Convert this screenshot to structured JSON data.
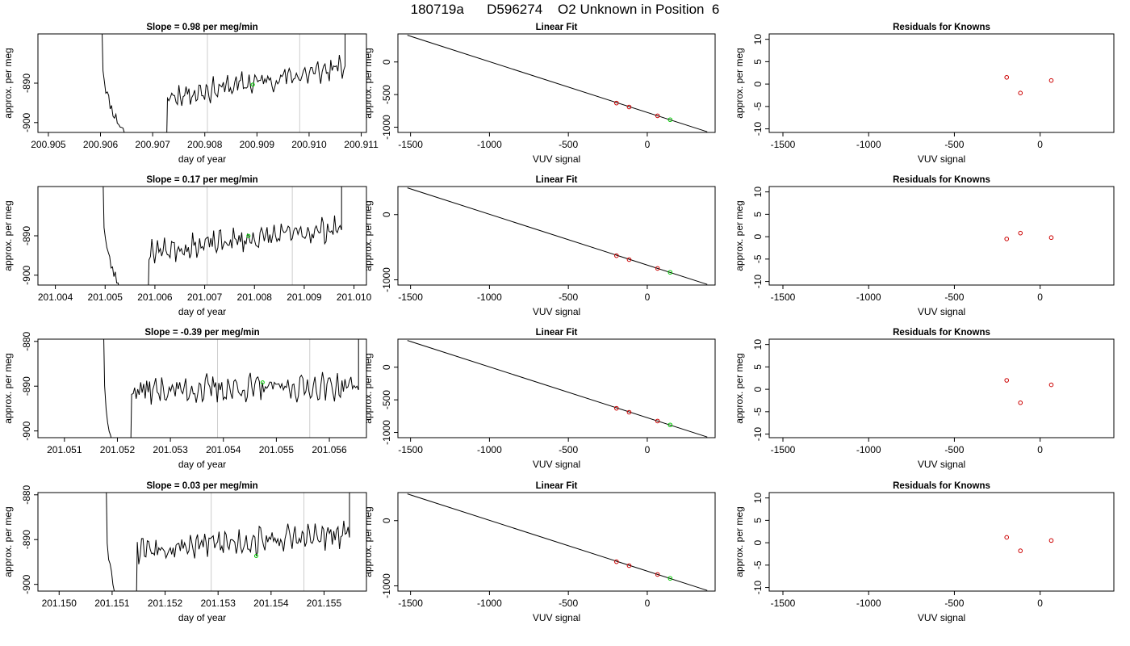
{
  "figure": {
    "title": "180719a      D596274    O2 Unknown in Position  6"
  },
  "chart_data": [
    {
      "type": "line",
      "title": "Slope =  0.98  per meg/min",
      "xlabel": "day of year",
      "ylabel": "approx. per meg",
      "xlim": [
        200.9048,
        200.9111
      ],
      "ylim": [
        -902.5,
        -877.5
      ],
      "xticks": [
        200.905,
        200.906,
        200.907,
        200.908,
        200.909,
        200.91,
        200.911
      ],
      "xtick_labels": [
        "200.905",
        "200.906",
        "200.907",
        "200.908",
        "200.909",
        "200.910",
        "200.911"
      ],
      "yticks": [
        -900,
        -890
      ],
      "ytick_labels": [
        "-900",
        "-890"
      ],
      "vlines": [
        200.90805,
        200.90982
      ],
      "vline_color": "#cccccc",
      "highlight_x": 200.90892,
      "highlight_color": "#00cc00",
      "seed": 11,
      "series_desc": {
        "drop_x": 200.90602,
        "rise_start": 200.90727,
        "start_y": -893.5,
        "end_y": -886,
        "spike_x": 200.91069
      }
    },
    {
      "type": "scatter",
      "title": "Linear Fit",
      "xlabel": "VUV signal",
      "ylabel": "approx. per meg",
      "xlim": [
        -1580,
        430
      ],
      "ylim": [
        -1080,
        430
      ],
      "xticks": [
        -1500,
        -1000,
        -500,
        0
      ],
      "xtick_labels": [
        "-1500",
        "-1000",
        "-500",
        "0"
      ],
      "yticks": [
        -1000,
        -500,
        0
      ],
      "ytick_labels": [
        "-1000",
        "-500",
        "0"
      ],
      "line": {
        "x": [
          -1520,
          380
        ],
        "y": [
          410,
          -1070
        ]
      },
      "points": [
        {
          "x": -195,
          "y": -630
        },
        {
          "x": -115,
          "y": -690
        },
        {
          "x": 65,
          "y": -825
        }
      ],
      "points_color": "#cc0000",
      "unknown": {
        "x": 145,
        "y": -885
      },
      "unknown_color": "#00cc00"
    },
    {
      "type": "scatter",
      "title": "Residuals for Knowns",
      "xlabel": "VUV signal",
      "ylabel": "approx. per meg",
      "xlim": [
        -1580,
        430
      ],
      "ylim": [
        -10.8,
        11.2
      ],
      "xticks": [
        -1500,
        -1000,
        -500,
        0
      ],
      "xtick_labels": [
        "-1500",
        "-1000",
        "-500",
        "0"
      ],
      "yticks": [
        -10,
        -5,
        0,
        5,
        10
      ],
      "ytick_labels": [
        "-10",
        "-5",
        "0",
        "5",
        "10"
      ],
      "points": [
        {
          "x": -195,
          "y": 1.5
        },
        {
          "x": -115,
          "y": -2.0
        },
        {
          "x": 65,
          "y": 0.8
        }
      ],
      "points_color": "#cc0000"
    },
    {
      "type": "line",
      "title": "Slope =  0.17  per meg/min",
      "xlabel": "day of year",
      "ylabel": "approx. per meg",
      "xlim": [
        201.00365,
        201.01025
      ],
      "ylim": [
        -902.5,
        -877.5
      ],
      "xticks": [
        201.004,
        201.005,
        201.006,
        201.007,
        201.008,
        201.009,
        201.01
      ],
      "xtick_labels": [
        "201.004",
        "201.005",
        "201.006",
        "201.007",
        "201.008",
        "201.009",
        "201.010"
      ],
      "yticks": [
        -900,
        -890
      ],
      "ytick_labels": [
        "-900",
        "-890"
      ],
      "vlines": [
        201.00705,
        201.00876
      ],
      "vline_color": "#cccccc",
      "highlight_x": 201.00788,
      "highlight_color": "#00cc00",
      "seed": 23,
      "series_desc": {
        "drop_x": 201.00495,
        "rise_start": 201.00588,
        "start_y": -894,
        "end_y": -888,
        "spike_x": 201.00975
      }
    },
    {
      "type": "scatter",
      "title": "Linear Fit",
      "xlabel": "VUV signal",
      "ylabel": "approx. per meg",
      "xlim": [
        -1580,
        430
      ],
      "ylim": [
        -1080,
        430
      ],
      "xticks": [
        -1500,
        -1000,
        -500,
        0
      ],
      "xtick_labels": [
        "-1500",
        "-1000",
        "-500",
        "0"
      ],
      "yticks": [
        -1000,
        0
      ],
      "ytick_labels": [
        "-1000",
        "0"
      ],
      "line": {
        "x": [
          -1520,
          380
        ],
        "y": [
          410,
          -1070
        ]
      },
      "points": [
        {
          "x": -195,
          "y": -630
        },
        {
          "x": -115,
          "y": -690
        },
        {
          "x": 65,
          "y": -825
        }
      ],
      "points_color": "#cc0000",
      "unknown": {
        "x": 145,
        "y": -885
      },
      "unknown_color": "#00cc00"
    },
    {
      "type": "scatter",
      "title": "Residuals for Knowns",
      "xlabel": "VUV signal",
      "ylabel": "approx. per meg",
      "xlim": [
        -1580,
        430
      ],
      "ylim": [
        -10.8,
        11.2
      ],
      "xticks": [
        -1500,
        -1000,
        -500,
        0
      ],
      "xtick_labels": [
        "-1500",
        "-1000",
        "-500",
        "0"
      ],
      "yticks": [
        -10,
        -5,
        0,
        5,
        10
      ],
      "ytick_labels": [
        "-10",
        "-5",
        "0",
        "5",
        "10"
      ],
      "points": [
        {
          "x": -195,
          "y": -0.5
        },
        {
          "x": -115,
          "y": 0.8
        },
        {
          "x": 65,
          "y": -0.2
        }
      ],
      "points_color": "#cc0000"
    },
    {
      "type": "line",
      "title": "Slope =  -0.39  per meg/min",
      "xlabel": "day of year",
      "ylabel": "approx. per meg",
      "xlim": [
        201.0505,
        201.0567
      ],
      "ylim": [
        -901.5,
        -879.5
      ],
      "xticks": [
        201.051,
        201.052,
        201.053,
        201.054,
        201.055,
        201.056
      ],
      "xtick_labels": [
        "201.051",
        "201.052",
        "201.053",
        "201.054",
        "201.055",
        "201.056"
      ],
      "yticks": [
        -900,
        -890,
        -880
      ],
      "ytick_labels": [
        "-900",
        "-890",
        "-880"
      ],
      "vlines": [
        201.05389,
        201.05563
      ],
      "vline_color": "#cccccc",
      "highlight_x": 201.05474,
      "highlight_color": "#00cc00",
      "seed": 37,
      "series_desc": {
        "drop_x": 201.05173,
        "rise_start": 201.05225,
        "start_y": -891,
        "end_y": -890,
        "spike_x": 201.05655
      }
    },
    {
      "type": "scatter",
      "title": "Linear Fit",
      "xlabel": "VUV signal",
      "ylabel": "approx. per meg",
      "xlim": [
        -1580,
        430
      ],
      "ylim": [
        -1080,
        430
      ],
      "xticks": [
        -1500,
        -1000,
        -500,
        0
      ],
      "xtick_labels": [
        "-1500",
        "-1000",
        "-500",
        "0"
      ],
      "yticks": [
        -1000,
        -500,
        0
      ],
      "ytick_labels": [
        "-1000",
        "-500",
        "0"
      ],
      "line": {
        "x": [
          -1520,
          380
        ],
        "y": [
          410,
          -1070
        ]
      },
      "points": [
        {
          "x": -195,
          "y": -630
        },
        {
          "x": -115,
          "y": -690
        },
        {
          "x": 65,
          "y": -825
        }
      ],
      "points_color": "#cc0000",
      "unknown": {
        "x": 145,
        "y": -885
      },
      "unknown_color": "#00cc00"
    },
    {
      "type": "scatter",
      "title": "Residuals for Knowns",
      "xlabel": "VUV signal",
      "ylabel": "approx. per meg",
      "xlim": [
        -1580,
        430
      ],
      "ylim": [
        -10.8,
        11.2
      ],
      "xticks": [
        -1500,
        -1000,
        -500,
        0
      ],
      "xtick_labels": [
        "-1500",
        "-1000",
        "-500",
        "0"
      ],
      "yticks": [
        -10,
        -5,
        0,
        5,
        10
      ],
      "ytick_labels": [
        "-10",
        "-5",
        "0",
        "5",
        "10"
      ],
      "points": [
        {
          "x": -195,
          "y": 2.0
        },
        {
          "x": -115,
          "y": -3.0
        },
        {
          "x": 65,
          "y": 1.0
        }
      ],
      "points_color": "#cc0000"
    },
    {
      "type": "line",
      "title": "Slope =  0.03  per meg/min",
      "xlabel": "day of year",
      "ylabel": "approx. per meg",
      "xlim": [
        201.1496,
        201.1558
      ],
      "ylim": [
        -901.5,
        -879.5
      ],
      "xticks": [
        201.15,
        201.151,
        201.152,
        201.153,
        201.154,
        201.155
      ],
      "xtick_labels": [
        "201.150",
        "201.151",
        "201.152",
        "201.153",
        "201.154",
        "201.155"
      ],
      "yticks": [
        -900,
        -890,
        -880
      ],
      "ytick_labels": [
        "-900",
        "-890",
        "-880"
      ],
      "vlines": [
        201.15287,
        201.15462
      ],
      "vline_color": "#cccccc",
      "highlight_x": 201.15372,
      "highlight_color": "#00cc00",
      "seed": 53,
      "series_desc": {
        "drop_x": 201.15088,
        "rise_start": 201.15145,
        "start_y": -892,
        "end_y": -889,
        "spike_x": 201.15548
      }
    },
    {
      "type": "scatter",
      "title": "Linear Fit",
      "xlabel": "VUV signal",
      "ylabel": "approx. per meg",
      "xlim": [
        -1580,
        430
      ],
      "ylim": [
        -1080,
        430
      ],
      "xticks": [
        -1500,
        -1000,
        -500,
        0
      ],
      "xtick_labels": [
        "-1500",
        "-1000",
        "-500",
        "0"
      ],
      "yticks": [
        -1000,
        0
      ],
      "ytick_labels": [
        "-1000",
        "0"
      ],
      "line": {
        "x": [
          -1520,
          380
        ],
        "y": [
          410,
          -1070
        ]
      },
      "points": [
        {
          "x": -195,
          "y": -630
        },
        {
          "x": -115,
          "y": -690
        },
        {
          "x": 65,
          "y": -825
        }
      ],
      "points_color": "#cc0000",
      "unknown": {
        "x": 145,
        "y": -885
      },
      "unknown_color": "#00cc00"
    },
    {
      "type": "scatter",
      "title": "Residuals for Knowns",
      "xlabel": "VUV signal",
      "ylabel": "approx. per meg",
      "xlim": [
        -1580,
        430
      ],
      "ylim": [
        -10.8,
        11.2
      ],
      "xticks": [
        -1500,
        -1000,
        -500,
        0
      ],
      "xtick_labels": [
        "-1500",
        "-1000",
        "-500",
        "0"
      ],
      "yticks": [
        -10,
        -5,
        0,
        5,
        10
      ],
      "ytick_labels": [
        "-10",
        "-5",
        "0",
        "5",
        "10"
      ],
      "points": [
        {
          "x": -195,
          "y": 1.2
        },
        {
          "x": -115,
          "y": -1.8
        },
        {
          "x": 65,
          "y": 0.5
        }
      ],
      "points_color": "#cc0000"
    }
  ]
}
